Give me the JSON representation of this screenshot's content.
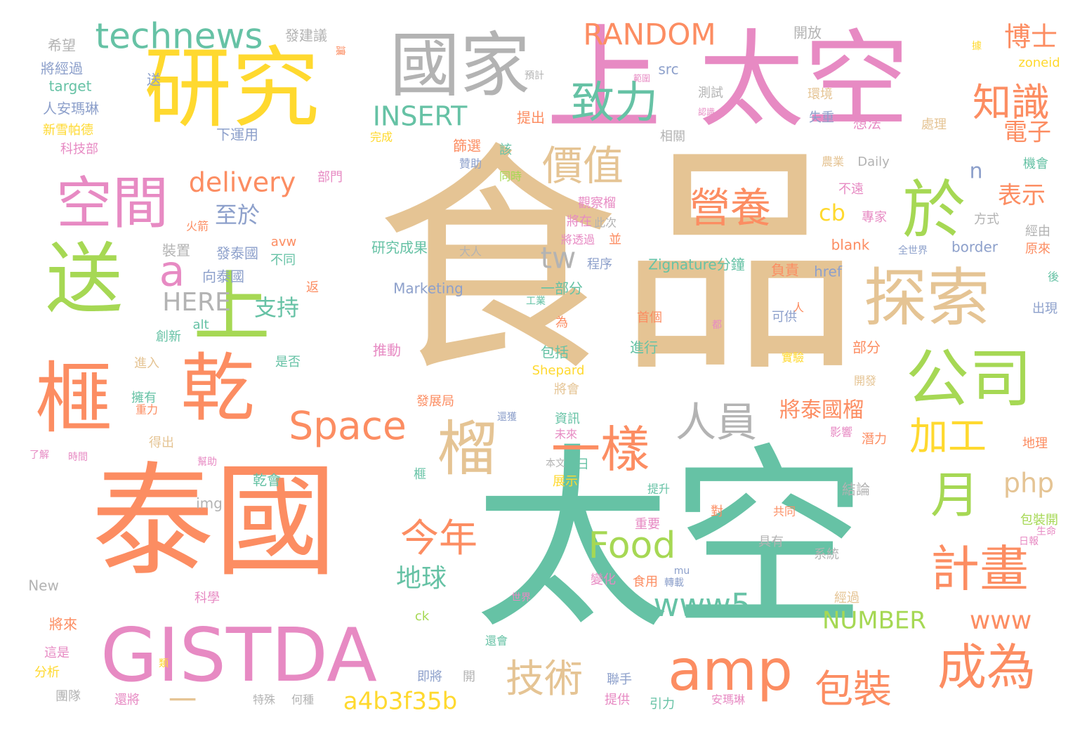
{
  "palette": {
    "green": "#66c2a5",
    "orange": "#fc8d62",
    "pink": "#e78ac3",
    "lime": "#a6d854",
    "yellow": "#ffd92f",
    "tan": "#e5c494",
    "gray": "#b3b3b3",
    "blue": "#8da0cb"
  },
  "words": [
    {
      "text": "食品",
      "color": "tan"
    },
    {
      "text": "太空",
      "color": "green"
    },
    {
      "text": "太空",
      "color": "pink"
    },
    {
      "text": "泰國",
      "color": "orange"
    },
    {
      "text": "上",
      "color": "pink"
    },
    {
      "text": "研究",
      "color": "yellow"
    },
    {
      "text": "國家",
      "color": "gray"
    },
    {
      "text": "送",
      "color": "lime"
    },
    {
      "text": "上",
      "color": "lime"
    },
    {
      "text": "榧",
      "color": "orange"
    },
    {
      "text": "乾",
      "color": "orange"
    },
    {
      "text": "GISTDA",
      "color": "pink"
    },
    {
      "text": "探索",
      "color": "tan"
    },
    {
      "text": "於",
      "color": "lime"
    },
    {
      "text": "公司",
      "color": "lime"
    },
    {
      "text": "空間",
      "color": "pink"
    },
    {
      "text": "technews",
      "color": "green"
    },
    {
      "text": "致力",
      "color": "green"
    },
    {
      "text": "營養",
      "color": "orange"
    },
    {
      "text": "價值",
      "color": "tan"
    },
    {
      "text": "知識",
      "color": "orange"
    },
    {
      "text": "計畫",
      "color": "orange"
    },
    {
      "text": "成為",
      "color": "orange"
    },
    {
      "text": "amp",
      "color": "orange"
    },
    {
      "text": "一樣",
      "color": "orange"
    },
    {
      "text": "榴",
      "color": "tan"
    },
    {
      "text": "Space",
      "color": "orange"
    },
    {
      "text": "月",
      "color": "lime"
    },
    {
      "text": "人員",
      "color": "gray"
    },
    {
      "text": "加工",
      "color": "yellow"
    },
    {
      "text": "Food",
      "color": "lime"
    },
    {
      "text": "www5",
      "color": "green"
    },
    {
      "text": "技術",
      "color": "tan"
    },
    {
      "text": "包裝",
      "color": "orange"
    },
    {
      "text": "今年",
      "color": "orange"
    },
    {
      "text": "RANDOM",
      "color": "orange"
    },
    {
      "text": "INSERT",
      "color": "green"
    },
    {
      "text": "delivery",
      "color": "orange"
    },
    {
      "text": "博士",
      "color": "orange"
    },
    {
      "text": "電子",
      "color": "orange"
    },
    {
      "text": "表示",
      "color": "orange"
    },
    {
      "text": "tw",
      "color": "gray"
    },
    {
      "text": "a",
      "color": "pink"
    },
    {
      "text": "HERE",
      "color": "gray"
    },
    {
      "text": "至於",
      "color": "blue"
    },
    {
      "text": "支持",
      "color": "green"
    },
    {
      "text": "cb",
      "color": "yellow"
    },
    {
      "text": "n",
      "color": "blue"
    },
    {
      "text": "php",
      "color": "tan"
    },
    {
      "text": "a4b3f35b",
      "color": "yellow"
    },
    {
      "text": "www",
      "color": "orange"
    },
    {
      "text": "NUMBER",
      "color": "lime"
    },
    {
      "text": "地球",
      "color": "green"
    },
    {
      "text": "將泰國榴",
      "color": "orange"
    },
    {
      "text": "一",
      "color": "tan"
    },
    {
      "text": "發建議",
      "color": "gray"
    },
    {
      "text": "開放",
      "color": "gray"
    },
    {
      "text": "希望",
      "color": "gray"
    },
    {
      "text": "將經過",
      "color": "blue"
    },
    {
      "text": "target",
      "color": "green"
    },
    {
      "text": "人安瑪琳",
      "color": "blue"
    },
    {
      "text": "新雪帕德",
      "color": "yellow"
    },
    {
      "text": "科技部",
      "color": "pink"
    },
    {
      "text": "下運用",
      "color": "blue"
    },
    {
      "text": "送",
      "color": "blue"
    },
    {
      "text": "src",
      "color": "blue"
    },
    {
      "text": "zoneid",
      "color": "yellow"
    },
    {
      "text": "環境",
      "color": "tan"
    },
    {
      "text": "測試",
      "color": "gray"
    },
    {
      "text": "提出",
      "color": "orange"
    },
    {
      "text": "失重",
      "color": "blue"
    },
    {
      "text": "想法",
      "color": "pink"
    },
    {
      "text": "處理",
      "color": "tan"
    },
    {
      "text": "相關",
      "color": "gray"
    },
    {
      "text": "完成",
      "color": "yellow"
    },
    {
      "text": "篩選",
      "color": "orange"
    },
    {
      "text": "該",
      "color": "green"
    },
    {
      "text": "Daily",
      "color": "gray"
    },
    {
      "text": "機會",
      "color": "green"
    },
    {
      "text": "部門",
      "color": "pink"
    },
    {
      "text": "贊助",
      "color": "blue"
    },
    {
      "text": "同時",
      "color": "lime"
    },
    {
      "text": "農業",
      "color": "tan"
    },
    {
      "text": "不遠",
      "color": "pink"
    },
    {
      "text": "專家",
      "color": "pink"
    },
    {
      "text": "方式",
      "color": "gray"
    },
    {
      "text": "經由",
      "color": "gray"
    },
    {
      "text": "觀察榴",
      "color": "pink"
    },
    {
      "text": "此次",
      "color": "gray"
    },
    {
      "text": "將在",
      "color": "pink"
    },
    {
      "text": "並",
      "color": "orange"
    },
    {
      "text": "將透過",
      "color": "pink"
    },
    {
      "text": "研究成果",
      "color": "green"
    },
    {
      "text": "大人",
      "color": "gray"
    },
    {
      "text": "blank",
      "color": "orange"
    },
    {
      "text": "全世界",
      "color": "blue"
    },
    {
      "text": "border",
      "color": "blue"
    },
    {
      "text": "原來",
      "color": "orange"
    },
    {
      "text": "火箭",
      "color": "orange"
    },
    {
      "text": "裝置",
      "color": "gray"
    },
    {
      "text": "發泰國",
      "color": "blue"
    },
    {
      "text": "avw",
      "color": "orange"
    },
    {
      "text": "不同",
      "color": "green"
    },
    {
      "text": "向泰國",
      "color": "blue"
    },
    {
      "text": "程序",
      "color": "blue"
    },
    {
      "text": "Zignature分鐘",
      "color": "green"
    },
    {
      "text": "負責",
      "color": "orange"
    },
    {
      "text": "href",
      "color": "blue"
    },
    {
      "text": "返",
      "color": "orange"
    },
    {
      "text": "Marketing",
      "color": "blue"
    },
    {
      "text": "一部分",
      "color": "green"
    },
    {
      "text": "工業",
      "color": "green"
    },
    {
      "text": "後",
      "color": "green"
    },
    {
      "text": "出現",
      "color": "blue"
    },
    {
      "text": "alt",
      "color": "green"
    },
    {
      "text": "創新",
      "color": "green"
    },
    {
      "text": "為",
      "color": "orange"
    },
    {
      "text": "首個",
      "color": "orange"
    },
    {
      "text": "人",
      "color": "orange"
    },
    {
      "text": "都",
      "color": "pink"
    },
    {
      "text": "可供",
      "color": "blue"
    },
    {
      "text": "推動",
      "color": "pink"
    },
    {
      "text": "包括",
      "color": "green"
    },
    {
      "text": "進行",
      "color": "green"
    },
    {
      "text": "實驗",
      "color": "yellow"
    },
    {
      "text": "部分",
      "color": "orange"
    },
    {
      "text": "進入",
      "color": "tan"
    },
    {
      "text": "是否",
      "color": "green"
    },
    {
      "text": "Shepard",
      "color": "yellow"
    },
    {
      "text": "開發",
      "color": "tan"
    },
    {
      "text": "擁有",
      "color": "green"
    },
    {
      "text": "將會",
      "color": "tan"
    },
    {
      "text": "重力",
      "color": "orange"
    },
    {
      "text": "發展局",
      "color": "orange"
    },
    {
      "text": "資訊",
      "color": "green"
    },
    {
      "text": "還獲",
      "color": "blue"
    },
    {
      "text": "得出",
      "color": "tan"
    },
    {
      "text": "未來",
      "color": "pink"
    },
    {
      "text": "影響",
      "color": "pink"
    },
    {
      "text": "潛力",
      "color": "orange"
    },
    {
      "text": "地理",
      "color": "orange"
    },
    {
      "text": "了解",
      "color": "pink"
    },
    {
      "text": "時間",
      "color": "pink"
    },
    {
      "text": "幫助",
      "color": "pink"
    },
    {
      "text": "本文",
      "color": "gray"
    },
    {
      "text": "日",
      "color": "green"
    },
    {
      "text": "榧",
      "color": "green"
    },
    {
      "text": "展示",
      "color": "yellow"
    },
    {
      "text": "乾會",
      "color": "green"
    },
    {
      "text": "提升",
      "color": "green"
    },
    {
      "text": "結論",
      "color": "gray"
    },
    {
      "text": "img",
      "color": "gray"
    },
    {
      "text": "對",
      "color": "orange"
    },
    {
      "text": "共同",
      "color": "orange"
    },
    {
      "text": "生命",
      "color": "pink"
    },
    {
      "text": "日報",
      "color": "pink"
    },
    {
      "text": "包裝開",
      "color": "lime"
    },
    {
      "text": "重要",
      "color": "pink"
    },
    {
      "text": "具有",
      "color": "gray"
    },
    {
      "text": "系統",
      "color": "gray"
    },
    {
      "text": "New",
      "color": "gray"
    },
    {
      "text": "mu",
      "color": "blue"
    },
    {
      "text": "變化",
      "color": "pink"
    },
    {
      "text": "食用",
      "color": "orange"
    },
    {
      "text": "轉載",
      "color": "blue"
    },
    {
      "text": "科學",
      "color": "pink"
    },
    {
      "text": "世界",
      "color": "pink"
    },
    {
      "text": "經過",
      "color": "tan"
    },
    {
      "text": "ck",
      "color": "lime"
    },
    {
      "text": "將來",
      "color": "orange"
    },
    {
      "text": "這是",
      "color": "pink"
    },
    {
      "text": "類",
      "color": "yellow"
    },
    {
      "text": "還會",
      "color": "green"
    },
    {
      "text": "分析",
      "color": "yellow"
    },
    {
      "text": "即將",
      "color": "blue"
    },
    {
      "text": "開",
      "color": "gray"
    },
    {
      "text": "聯手",
      "color": "blue"
    },
    {
      "text": "團隊",
      "color": "gray"
    },
    {
      "text": "還將",
      "color": "pink"
    },
    {
      "text": "特殊",
      "color": "gray"
    },
    {
      "text": "何種",
      "color": "gray"
    },
    {
      "text": "提供",
      "color": "pink"
    },
    {
      "text": "引力",
      "color": "green"
    },
    {
      "text": "安瑪琳",
      "color": "pink"
    },
    {
      "text": "讓",
      "color": "orange"
    },
    {
      "text": "預計",
      "color": "gray"
    },
    {
      "text": "範圍",
      "color": "pink"
    },
    {
      "text": "認識",
      "color": "pink"
    },
    {
      "text": "據",
      "color": "yellow"
    }
  ]
}
